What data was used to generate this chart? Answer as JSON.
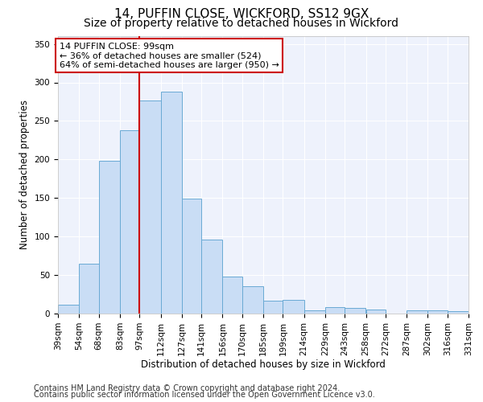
{
  "title1": "14, PUFFIN CLOSE, WICKFORD, SS12 9GX",
  "title2": "Size of property relative to detached houses in Wickford",
  "xlabel": "Distribution of detached houses by size in Wickford",
  "ylabel": "Number of detached properties",
  "footer1": "Contains HM Land Registry data © Crown copyright and database right 2024.",
  "footer2": "Contains public sector information licensed under the Open Government Licence v3.0.",
  "annotation_line1": "14 PUFFIN CLOSE: 99sqm",
  "annotation_line2": "← 36% of detached houses are smaller (524)",
  "annotation_line3": "64% of semi-detached houses are larger (950) →",
  "bar_color": "#c9ddf5",
  "bar_edge_color": "#6aaad4",
  "vline_color": "#cc0000",
  "vline_x": 97,
  "bins": [
    39,
    54,
    68,
    83,
    97,
    112,
    127,
    141,
    156,
    170,
    185,
    199,
    214,
    229,
    243,
    258,
    272,
    287,
    302,
    316,
    331
  ],
  "values": [
    12,
    65,
    198,
    238,
    277,
    288,
    149,
    96,
    48,
    35,
    17,
    18,
    4,
    8,
    7,
    5,
    0,
    4,
    4,
    3
  ],
  "ylim": [
    0,
    360
  ],
  "yticks": [
    0,
    50,
    100,
    150,
    200,
    250,
    300,
    350
  ],
  "background_color": "#eef2fc",
  "grid_color": "#ffffff",
  "title_fontsize": 11,
  "subtitle_fontsize": 10,
  "axis_label_fontsize": 8.5,
  "tick_fontsize": 7.5,
  "footer_fontsize": 7,
  "annotation_fontsize": 8
}
